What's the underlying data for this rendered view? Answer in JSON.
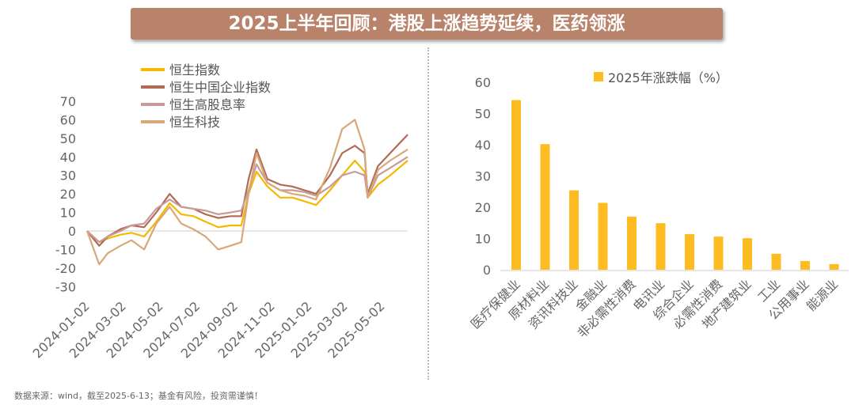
{
  "title": "2025上半年回顾：港股上涨趋势延续，医药领涨",
  "source": "数据来源：wind，截至2025-6-13；基金有风险，投资需谨慎！",
  "chart_data": [
    {
      "type": "line",
      "title": "",
      "xlabel": "",
      "ylabel": "",
      "ylim": [
        -30,
        70
      ],
      "yticks": [
        -30,
        -20,
        -10,
        0,
        10,
        20,
        30,
        40,
        50,
        60,
        70
      ],
      "xticks": [
        "2024-01-02",
        "2024-03-02",
        "2024-05-02",
        "2024-07-02",
        "2024-09-02",
        "2024-11-02",
        "2025-01-02",
        "2025-03-02",
        "2025-05-02"
      ],
      "x": [
        "2024-01-02",
        "2024-01-22",
        "2024-02-05",
        "2024-02-26",
        "2024-03-15",
        "2024-04-05",
        "2024-04-25",
        "2024-05-17",
        "2024-06-05",
        "2024-06-25",
        "2024-07-15",
        "2024-08-05",
        "2024-08-25",
        "2024-09-12",
        "2024-09-24",
        "2024-10-07",
        "2024-10-25",
        "2024-11-15",
        "2024-12-05",
        "2024-12-25",
        "2025-01-13",
        "2025-02-05",
        "2025-02-25",
        "2025-03-18",
        "2025-04-03",
        "2025-04-08",
        "2025-04-25",
        "2025-05-15",
        "2025-06-13"
      ],
      "legend_position": "top-left",
      "series": [
        {
          "name": "恒生指数",
          "color": "#f5b800",
          "values": [
            0,
            -6,
            -4,
            -2,
            -1,
            -3,
            5,
            15,
            9,
            8,
            5,
            2,
            3,
            3,
            20,
            32,
            24,
            18,
            18,
            16,
            14,
            22,
            30,
            38,
            32,
            18,
            25,
            30,
            38
          ]
        },
        {
          "name": "恒生中国企业指数",
          "color": "#b06a55",
          "values": [
            0,
            -8,
            -3,
            1,
            3,
            2,
            10,
            20,
            13,
            12,
            9,
            7,
            8,
            8,
            28,
            44,
            28,
            25,
            24,
            22,
            20,
            30,
            42,
            46,
            42,
            20,
            35,
            42,
            52
          ]
        },
        {
          "name": "恒生高股息率",
          "color": "#c99a9a",
          "values": [
            0,
            -6,
            -3,
            0,
            3,
            4,
            12,
            17,
            13,
            12,
            11,
            9,
            10,
            11,
            22,
            36,
            26,
            22,
            22,
            21,
            19,
            24,
            30,
            32,
            30,
            18,
            30,
            34,
            40
          ]
        },
        {
          "name": "恒生科技",
          "color": "#d8a77a",
          "values": [
            0,
            -18,
            -12,
            -8,
            -5,
            -10,
            4,
            13,
            4,
            1,
            -3,
            -10,
            -8,
            -6,
            20,
            42,
            26,
            22,
            20,
            19,
            17,
            34,
            55,
            60,
            44,
            18,
            33,
            38,
            44
          ]
        }
      ]
    },
    {
      "type": "bar",
      "title": "",
      "xlabel": "",
      "ylabel": "",
      "ylim": [
        0,
        60
      ],
      "yticks": [
        0,
        10,
        20,
        30,
        40,
        50,
        60
      ],
      "legend_position": "top",
      "series_name": "2025年涨跌幅（%）",
      "color": "#ffbb22",
      "categories": [
        "医疗保健业",
        "原材料业",
        "资讯科技业",
        "金融业",
        "非必需性消费",
        "电讯业",
        "综合企业",
        "必需性消费",
        "地产建筑业",
        "工业",
        "公用事业",
        "能源业"
      ],
      "values": [
        54.3,
        40.2,
        25.4,
        21.4,
        17.0,
        14.9,
        11.4,
        10.6,
        10.1,
        5.1,
        2.8,
        1.8
      ]
    }
  ]
}
